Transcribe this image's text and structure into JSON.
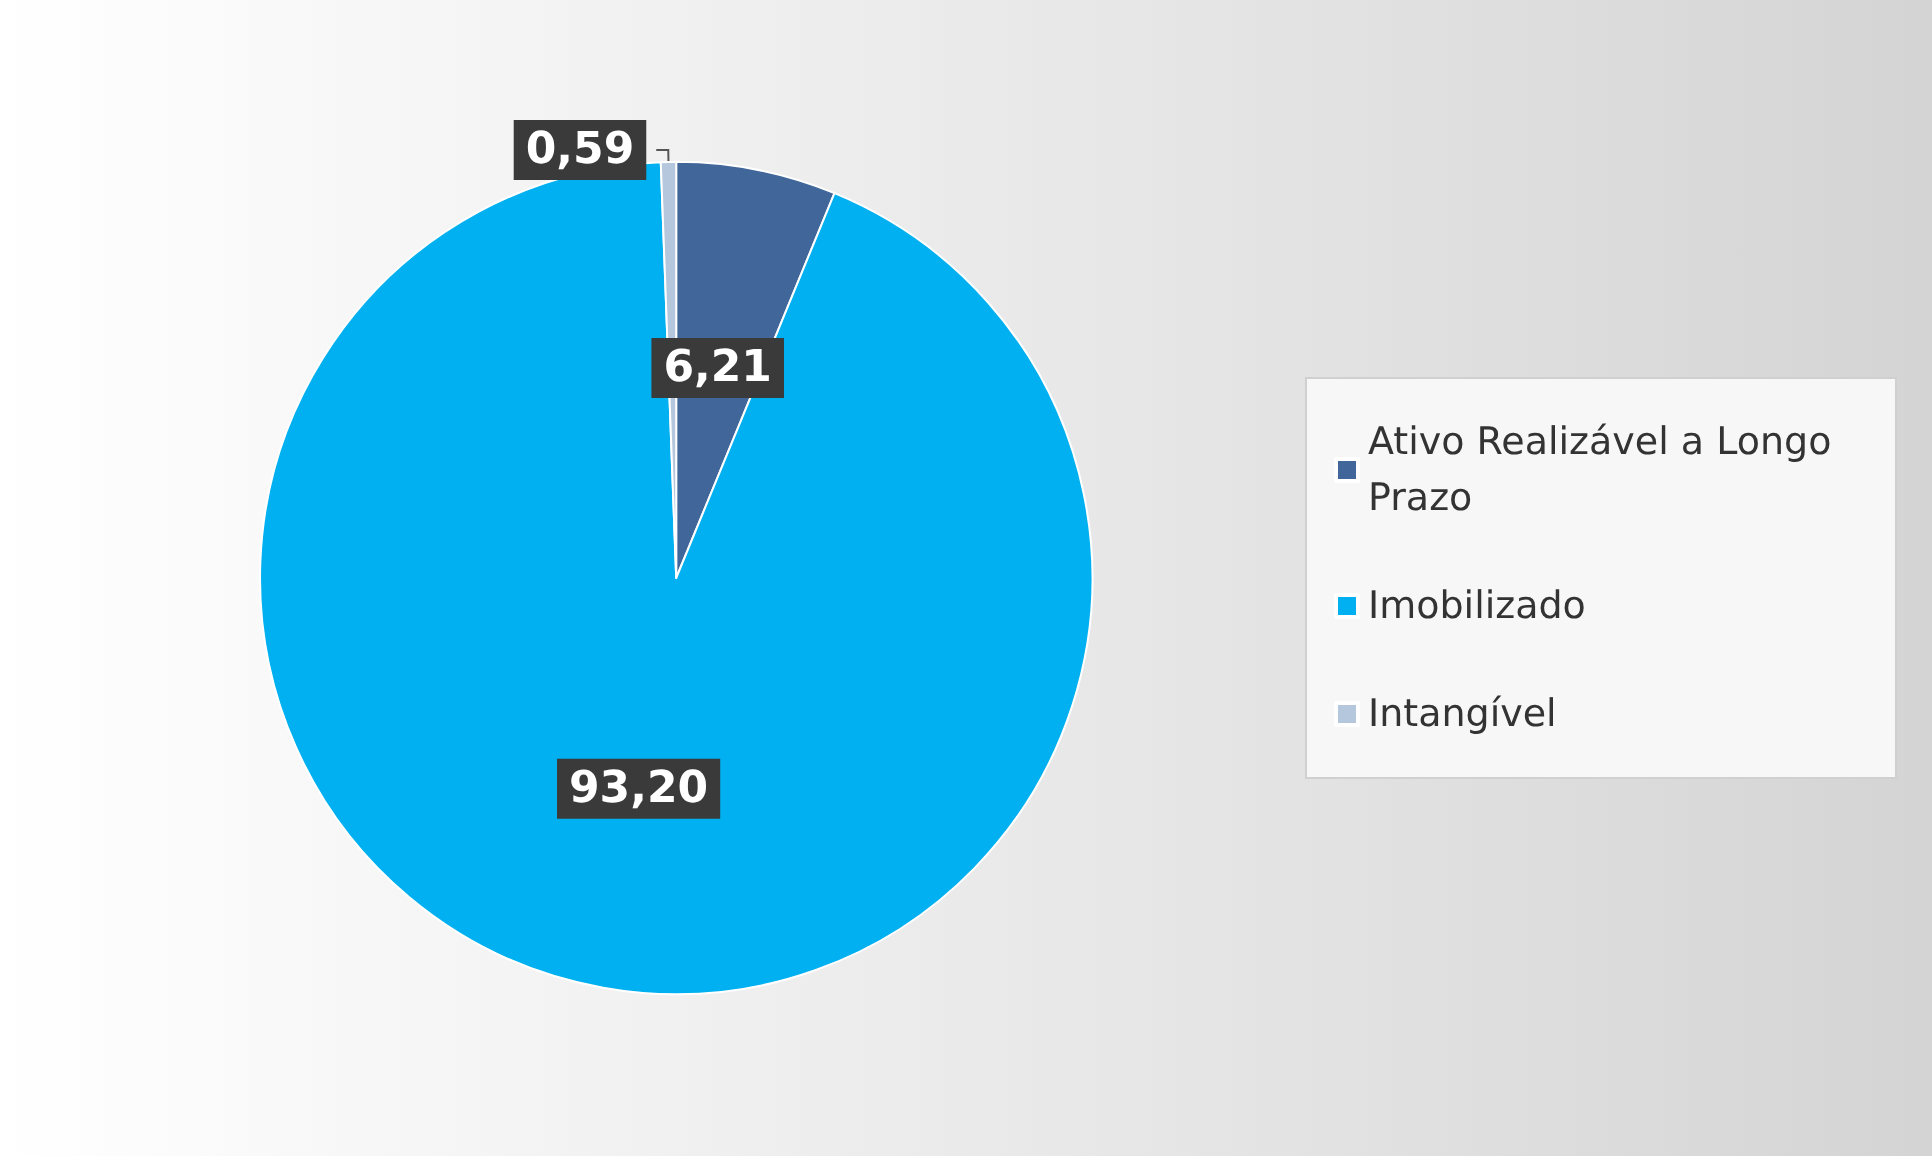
{
  "chart_data": {
    "type": "pie",
    "categories": [
      "Ativo Realizável a Longo Prazo",
      "Imobilizado",
      "Intangível"
    ],
    "values": [
      6.21,
      93.2,
      0.59
    ],
    "value_labels": [
      "6,21",
      "93,20",
      "0,59"
    ],
    "colors": [
      "#41679a",
      "#00b0f0",
      "#b4c7dc"
    ],
    "legend": "right"
  }
}
